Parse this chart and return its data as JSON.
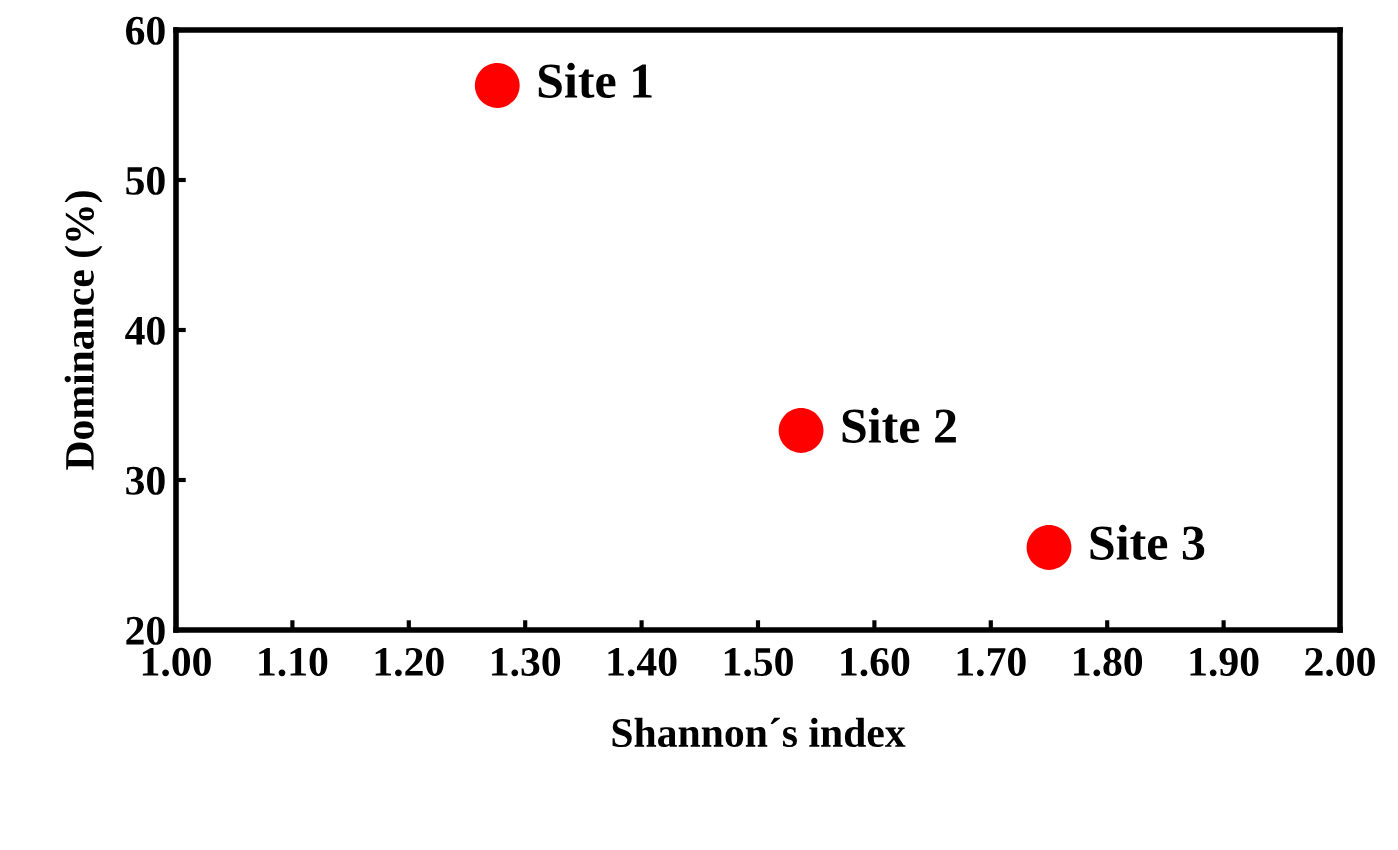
{
  "chart_data": {
    "type": "scatter",
    "xlabel": "Shannon´s index",
    "ylabel": "Dominance (%)",
    "x": [
      1.276,
      1.537,
      1.75
    ],
    "values": [
      56.3,
      33.3,
      25.5
    ],
    "color": "#ff0000",
    "marker": "circle",
    "xlim": [
      1.0,
      2.0
    ],
    "ylim": [
      20,
      60
    ],
    "xticks": [
      {
        "value": 1.0,
        "label": "1.00"
      },
      {
        "value": 1.1,
        "label": "1.10"
      },
      {
        "value": 1.2,
        "label": "1.20"
      },
      {
        "value": 1.3,
        "label": "1.30"
      },
      {
        "value": 1.4,
        "label": "1.40"
      },
      {
        "value": 1.5,
        "label": "1.50"
      },
      {
        "value": 1.6,
        "label": "1.60"
      },
      {
        "value": 1.7,
        "label": "1.70"
      },
      {
        "value": 1.8,
        "label": "1.80"
      },
      {
        "value": 1.9,
        "label": "1.90"
      },
      {
        "value": 2.0,
        "label": "2.00"
      }
    ],
    "yticks": [
      20,
      30,
      40,
      50,
      60
    ],
    "annotations": [
      {
        "text": "Site 1",
        "x": 1.276,
        "y": 56.3
      },
      {
        "text": "Site 2",
        "x": 1.537,
        "y": 33.3
      },
      {
        "text": "Site 3",
        "x": 1.75,
        "y": 25.5
      }
    ],
    "grid": false,
    "legend": false
  }
}
